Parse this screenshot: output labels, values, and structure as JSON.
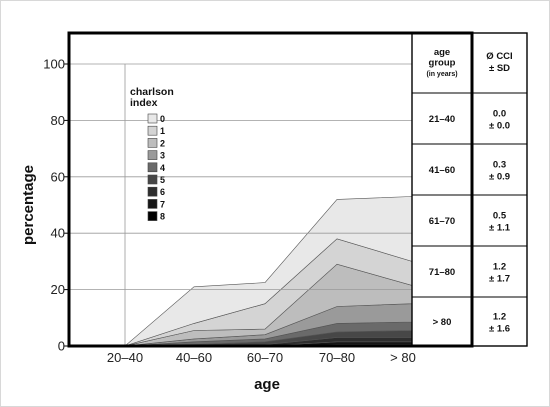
{
  "chart_data": {
    "type": "area",
    "stacked": true,
    "categories": [
      "20–40",
      "40–60",
      "60–70",
      "70–80",
      "> 80"
    ],
    "xlabel": "age",
    "ylabel": "percentage",
    "ylim": [
      0,
      105
    ],
    "yticks": [
      0,
      20,
      40,
      60,
      80,
      100
    ],
    "grid": true,
    "legend": {
      "title_lines": [
        "charlson",
        "index"
      ],
      "placement": "top-left"
    },
    "series": [
      {
        "name": "8",
        "color": "#000000",
        "values": [
          0,
          0,
          0,
          0.5,
          0.5
        ]
      },
      {
        "name": "7",
        "color": "#161616",
        "values": [
          0,
          0,
          0,
          1.0,
          1.0
        ]
      },
      {
        "name": "6",
        "color": "#2e2e2e",
        "values": [
          0,
          0,
          0.5,
          1.5,
          1.5
        ]
      },
      {
        "name": "5",
        "color": "#474747",
        "values": [
          0,
          0.5,
          1.0,
          2.0,
          2.5
        ]
      },
      {
        "name": "4",
        "color": "#6a6a6a",
        "values": [
          0,
          1.0,
          1.0,
          3.0,
          3.0
        ]
      },
      {
        "name": "3",
        "color": "#9a9a9a",
        "values": [
          0,
          1.0,
          1.5,
          6.0,
          6.5
        ]
      },
      {
        "name": "2",
        "color": "#bdbdbd",
        "values": [
          0,
          3.0,
          2.0,
          15.0,
          6.5
        ]
      },
      {
        "name": "1",
        "color": "#d4d4d4",
        "values": [
          0,
          2.5,
          9.0,
          9.0,
          8.5
        ]
      },
      {
        "name": "0",
        "color": "#e8e8e8",
        "values": [
          0,
          13.0,
          7.5,
          14.0,
          23.0
        ]
      }
    ],
    "legend_order": [
      "0",
      "1",
      "2",
      "3",
      "4",
      "5",
      "6",
      "7",
      "8"
    ]
  },
  "table": {
    "header_col1_lines": [
      "age",
      "group"
    ],
    "header_col1_sub": "(in years)",
    "header_col2_lines": [
      "Ø CCI",
      "± SD"
    ],
    "rows": [
      {
        "group": "21–40",
        "mean": "0.0",
        "sd": "± 0.0"
      },
      {
        "group": "41–60",
        "mean": "0.3",
        "sd": "± 0.9"
      },
      {
        "group": "61–70",
        "mean": "0.5",
        "sd": "± 1.1"
      },
      {
        "group": "71–80",
        "mean": "1.2",
        "sd": "± 1.7"
      },
      {
        "group": "> 80",
        "mean": "1.2",
        "sd": "± 1.6"
      }
    ]
  }
}
